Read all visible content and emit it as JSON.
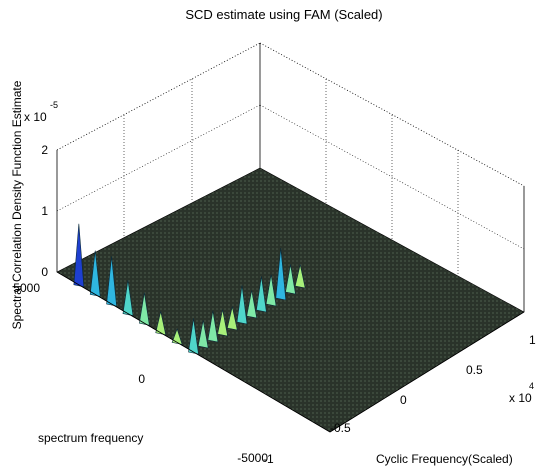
{
  "chart_data": {
    "type": "surface3d",
    "title": "SCD estimate using FAM (Scaled)",
    "zlabel": "Spectral Correlation Density Function Estimate",
    "xlabel": "Cyclic Frequency(Scaled)",
    "ylabel": "spectrum frequency",
    "z_exponent_label": "x 10",
    "z_exponent_power": "-5",
    "x_exponent_label": "x 10",
    "x_exponent_power": "4",
    "zticks": [
      "0",
      "1",
      "2"
    ],
    "yticks": [
      "5000",
      "0",
      "-5000"
    ],
    "xticks": [
      "-1",
      "-0.5",
      "0",
      "0.5",
      "1"
    ],
    "zlim": [
      0,
      2
    ],
    "ylim": [
      -5000,
      5000
    ],
    "xlim": [
      -1,
      1
    ],
    "grid": true,
    "colormap": "jet",
    "surface_color": "#2a332a",
    "ridge_along_y": {
      "x": -1,
      "y": [
        4200,
        3600,
        3000,
        2400,
        1800,
        1200,
        600
      ],
      "z": [
        1.0,
        0.72,
        0.78,
        0.55,
        0.5,
        0.35,
        0.22
      ]
    },
    "ridge_along_x": {
      "y": 0,
      "x": [
        -1.0,
        -0.9,
        -0.8,
        -0.7,
        -0.6,
        -0.5,
        -0.4,
        -0.3,
        -0.2,
        -0.1,
        0.0,
        0.1
      ],
      "z": [
        0.55,
        0.42,
        0.48,
        0.4,
        0.35,
        0.6,
        0.42,
        0.55,
        0.48,
        0.82,
        0.45,
        0.35
      ]
    }
  }
}
